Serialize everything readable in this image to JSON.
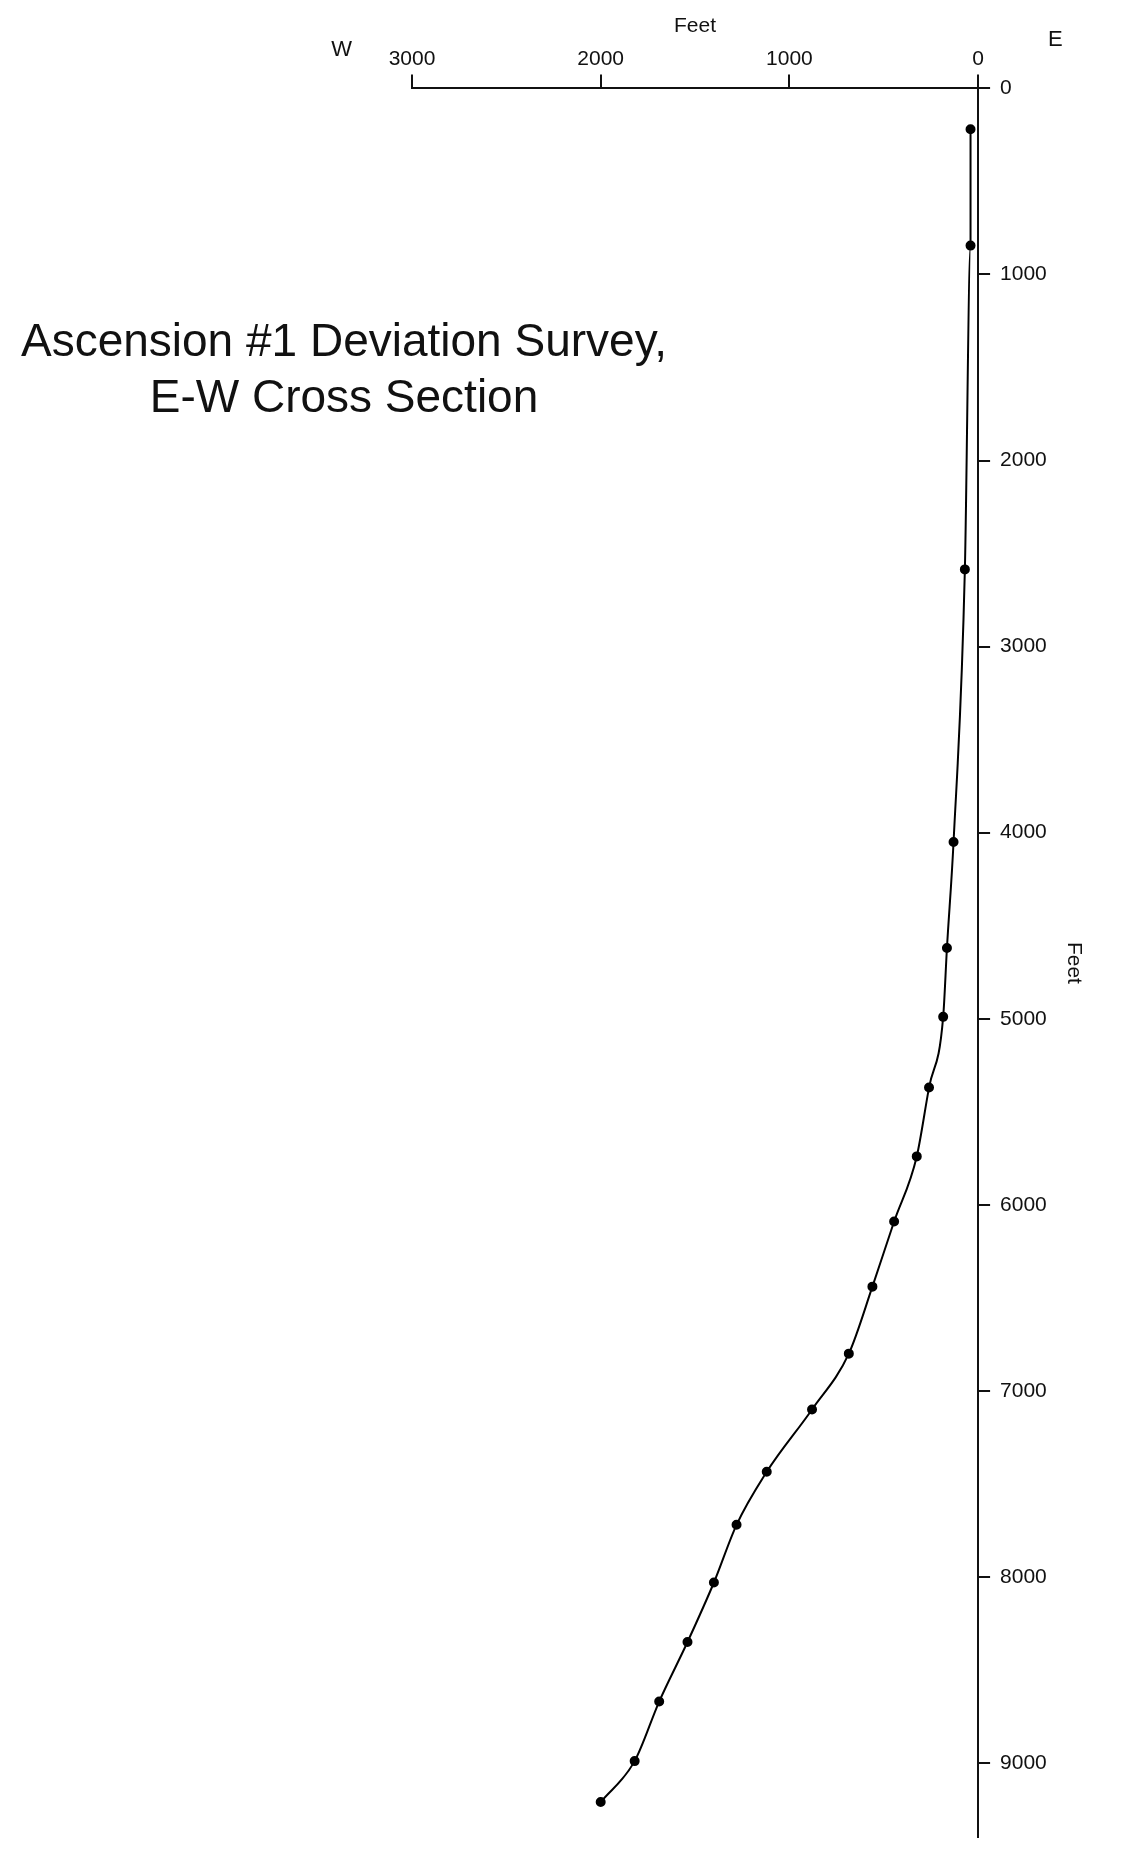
{
  "chart_data": {
    "type": "line",
    "title": "Ascension #1 Deviation Survey, E-W Cross Section",
    "xlabel": "Feet",
    "ylabel": "Feet",
    "annotations": [
      "W",
      "E"
    ],
    "x": [
      40,
      40,
      70,
      130,
      165,
      185,
      260,
      325,
      445,
      560,
      685,
      880,
      1120,
      1280,
      1400,
      1540,
      1690,
      1820,
      2000
    ],
    "values": [
      220,
      845,
      2585,
      4050,
      4620,
      4990,
      5370,
      5740,
      6090,
      6440,
      6800,
      7100,
      7435,
      7720,
      8030,
      8350,
      8670,
      8990,
      9210
    ],
    "color": "#000000",
    "xlim": [
      3000,
      0
    ],
    "xticks": [
      3000,
      2000,
      1000,
      0
    ],
    "ylim": [
      9400,
      0
    ],
    "yticks": [
      0,
      1000,
      2000,
      3000,
      4000,
      5000,
      6000,
      7000,
      8000,
      9000
    ],
    "grid": false,
    "legend": false,
    "marker": "circle",
    "line_style": "solid"
  }
}
